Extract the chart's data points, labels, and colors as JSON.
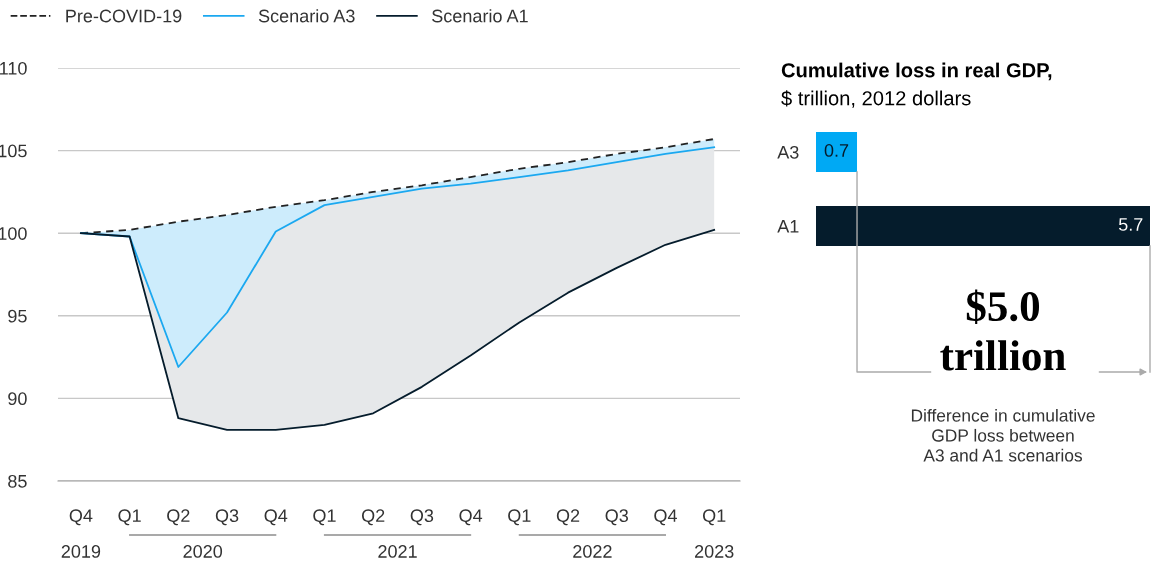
{
  "chart_data": [
    {
      "type": "line",
      "categories": [
        "Q4",
        "Q1",
        "Q2",
        "Q3",
        "Q4",
        "Q1",
        "Q2",
        "Q3",
        "Q4",
        "Q1",
        "Q2",
        "Q3",
        "Q4",
        "Q1"
      ],
      "annotations": [
        "2019",
        "2020",
        "2021",
        "2022",
        "2023"
      ],
      "series": [
        {
          "name": "Pre-COVID-19",
          "color": "#222222",
          "line_style": "dashed",
          "values": [
            100,
            100.2,
            100.7,
            101.1,
            101.6,
            102.0,
            102.5,
            102.9,
            103.4,
            103.9,
            104.3,
            104.8,
            105.2,
            105.7
          ]
        },
        {
          "name": "Scenario A3",
          "color": "#1ba8f0",
          "values": [
            100,
            99.8,
            91.9,
            95.2,
            100.1,
            101.7,
            102.2,
            102.7,
            103.0,
            103.4,
            103.8,
            104.3,
            104.8,
            105.2
          ],
          "lower": [
            100,
            99.8,
            91.9,
            95.2,
            100.1,
            101.7,
            102.2,
            102.7,
            103.0,
            103.4,
            103.8,
            104.3,
            104.8,
            105.2
          ],
          "upper": [
            100,
            100.2,
            100.7,
            101.1,
            101.6,
            102.0,
            102.5,
            102.9,
            103.4,
            103.9,
            104.3,
            104.8,
            105.2,
            105.7
          ]
        },
        {
          "name": "Scenario A1",
          "color": "#051c2c",
          "values": [
            100,
            99.8,
            88.8,
            88.1,
            88.1,
            88.4,
            89.1,
            90.7,
            92.6,
            94.6,
            96.4,
            97.9,
            99.3,
            100.2
          ],
          "lower": [
            100,
            99.8,
            88.8,
            88.1,
            88.1,
            88.4,
            89.1,
            90.7,
            92.6,
            94.6,
            96.4,
            97.9,
            99.3,
            100.2
          ],
          "upper": [
            100,
            99.8,
            91.9,
            95.2,
            100.1,
            101.7,
            102.2,
            102.7,
            103.0,
            103.4,
            103.8,
            104.3,
            104.8,
            105.2
          ]
        }
      ],
      "ylim": [
        85,
        110
      ],
      "yticks": [
        85,
        90,
        95,
        100,
        105,
        110
      ],
      "grid": "y",
      "legend": "top left",
      "marker": "none"
    },
    {
      "type": "bar",
      "orientation": "horizontal",
      "title": "Cumulative loss in real GDP,",
      "subtitle": "$ trillion, 2012 dollars",
      "categories": [
        "A3",
        "A1"
      ],
      "values": [
        0.7,
        5.7
      ],
      "colors": [
        "#00a9f4",
        "#051c2c"
      ],
      "data_labels": true,
      "annotations": [
        "$5.0\ntrillion",
        "Difference in cumulative\nGDP loss between\nA3 and A1 scenarios"
      ]
    }
  ]
}
